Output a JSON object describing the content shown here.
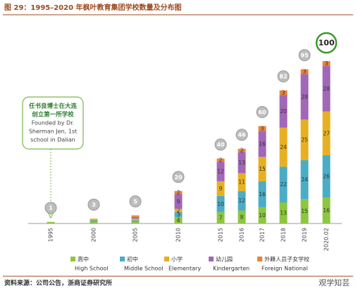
{
  "chart_data": {
    "type": "bar",
    "title": "图 29：1995–2020 年枫叶教育集团学校数量及分布图",
    "categories": [
      "1995",
      "2000",
      "2005",
      "2010",
      "2015",
      "2016",
      "2017",
      "2018",
      "2019",
      "2020.02"
    ],
    "series": [
      {
        "name": "高中",
        "name_en": "High School",
        "color": "#8dc63f",
        "values": [
          1,
          1,
          1,
          4,
          7,
          8,
          10,
          13,
          15,
          16
        ]
      },
      {
        "name": "初中",
        "name_en": "Middle School",
        "color": "#4bacc6",
        "values": [
          0,
          1,
          1,
          3,
          10,
          12,
          16,
          22,
          24,
          26
        ]
      },
      {
        "name": "小学",
        "name_en": "Elementary",
        "color": "#e8b020",
        "values": [
          0,
          1,
          1,
          2,
          9,
          11,
          15,
          24,
          25,
          27
        ]
      },
      {
        "name": "幼儿园",
        "name_en": "Kindergarten",
        "color": "#a267b7",
        "values": [
          0,
          0,
          1,
          9,
          12,
          13,
          16,
          20,
          28,
          28
        ]
      },
      {
        "name": "外籍人员子女学校",
        "name_en": "Foreign National",
        "color": "#e8823a",
        "values": [
          0,
          0,
          1,
          2,
          2,
          2,
          3,
          3,
          3,
          3
        ]
      }
    ],
    "totals": [
      1,
      3,
      5,
      20,
      40,
      46,
      60,
      82,
      95,
      100
    ],
    "annotation": [
      "任书良博士在大连",
      "创立第一所学校",
      "Founded by Dr.",
      "Sherman Jen, 1st",
      "school in Dalian"
    ],
    "source": "资料来源：公司公告，浙商证券研究所",
    "watermark": "观学知芸"
  }
}
